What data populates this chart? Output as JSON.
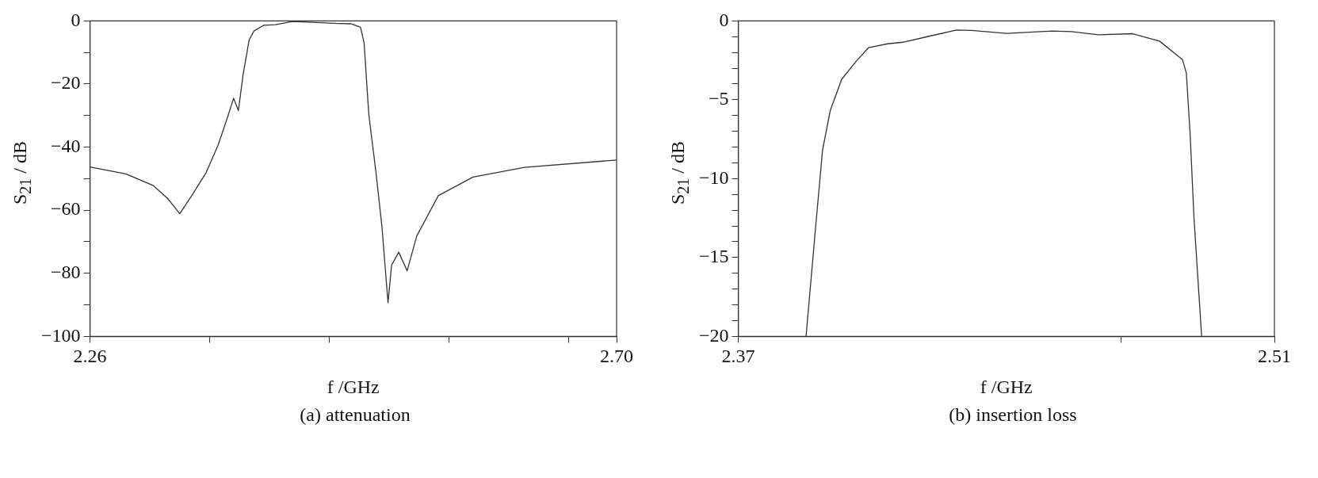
{
  "chart_data": [
    {
      "type": "line",
      "title": "(a) attenuation",
      "xlabel": "f /GHz",
      "ylabel": "S$_{21}$ / dB",
      "xlim": [
        2.26,
        2.7
      ],
      "xticks": [
        2.26,
        {
          "value": 2.36,
          "label": null
        },
        {
          "value": 2.46,
          "label": null
        },
        {
          "value": 2.56,
          "label": null
        },
        {
          "value": 2.66,
          "label": null
        },
        {
          "value": 2.7,
          "label": "2.70"
        }
      ],
      "ylim": [
        -100,
        0
      ],
      "yticks": [
        {
          "value": -100,
          "label": "−100"
        },
        {
          "value": -90,
          "label": null
        },
        {
          "value": -80,
          "label": "−80"
        },
        {
          "value": -70,
          "label": null
        },
        {
          "value": -60,
          "label": "−60"
        },
        {
          "value": -50,
          "label": null
        },
        {
          "value": -40,
          "label": "−40"
        },
        {
          "value": -30,
          "label": null
        },
        {
          "value": -20,
          "label": "−20"
        },
        {
          "value": -10,
          "label": null
        },
        0
      ],
      "series": [
        {
          "color": "#333333",
          "x": [
            2.26,
            2.29,
            2.313,
            2.325,
            2.335,
            2.345,
            2.357,
            2.367,
            2.374,
            2.38,
            2.384,
            2.388,
            2.393,
            2.397,
            2.405,
            2.415,
            2.429,
            2.449,
            2.467,
            2.478,
            2.486,
            2.489,
            2.493,
            2.499,
            2.504,
            2.509,
            2.512,
            2.518,
            2.525,
            2.533,
            2.551,
            2.58,
            2.623,
            2.7
          ],
          "values": [
            -46.3,
            -48.5,
            -52.2,
            -56.3,
            -61.1,
            -55.4,
            -48.1,
            -39.4,
            -31.6,
            -24.5,
            -28.4,
            -16.9,
            -6,
            -3.2,
            -1.4,
            -1.2,
            -0.2,
            -0.5,
            -0.8,
            -0.9,
            -2,
            -6.9,
            -29.8,
            -48.1,
            -65.5,
            -89.3,
            -77.4,
            -73.3,
            -79.2,
            -68.2,
            -55.4,
            -49.5,
            -46.4,
            -44.1
          ]
        }
      ]
    },
    {
      "type": "line",
      "title": "(b) insertion loss",
      "xlabel": "f /GHz",
      "ylabel": "S$_{21}$ / dB",
      "xlim": [
        2.37,
        2.51
      ],
      "xticks": [
        2.37,
        {
          "value": 2.47,
          "label": null
        },
        2.51
      ],
      "ylim": [
        -20,
        0
      ],
      "yticks": [
        {
          "value": -20,
          "label": "−20"
        },
        {
          "value": -19,
          "label": null
        },
        {
          "value": -18,
          "label": null
        },
        {
          "value": -17,
          "label": null
        },
        {
          "value": -16,
          "label": null
        },
        {
          "value": -15,
          "label": "−15"
        },
        {
          "value": -14,
          "label": null
        },
        {
          "value": -13,
          "label": null
        },
        {
          "value": -12,
          "label": null
        },
        {
          "value": -11,
          "label": null
        },
        {
          "value": -10,
          "label": "−10"
        },
        {
          "value": -9,
          "label": null
        },
        {
          "value": -8,
          "label": null
        },
        {
          "value": -7,
          "label": null
        },
        {
          "value": -6,
          "label": null
        },
        {
          "value": -5,
          "label": "−5"
        },
        {
          "value": -4,
          "label": null
        },
        {
          "value": -3,
          "label": null
        },
        {
          "value": -2,
          "label": null
        },
        {
          "value": -1,
          "label": null
        },
        0
      ],
      "series": [
        {
          "color": "#333333",
          "x": [
            2.3877,
            2.39,
            2.392,
            2.394,
            2.397,
            2.401,
            2.404,
            2.409,
            2.413,
            2.42,
            2.427,
            2.431,
            2.44,
            2.452,
            2.457,
            2.464,
            2.473,
            2.48,
            2.486,
            2.487,
            2.488,
            2.489,
            2.491
          ],
          "values": [
            -20,
            -13.6,
            -8.2,
            -5.7,
            -3.7,
            -2.5,
            -1.7,
            -1.45,
            -1.35,
            -0.96,
            -0.58,
            -0.6,
            -0.79,
            -0.64,
            -0.68,
            -0.88,
            -0.81,
            -1.28,
            -2.46,
            -3.3,
            -7.2,
            -12.5,
            -20
          ]
        }
      ]
    }
  ]
}
